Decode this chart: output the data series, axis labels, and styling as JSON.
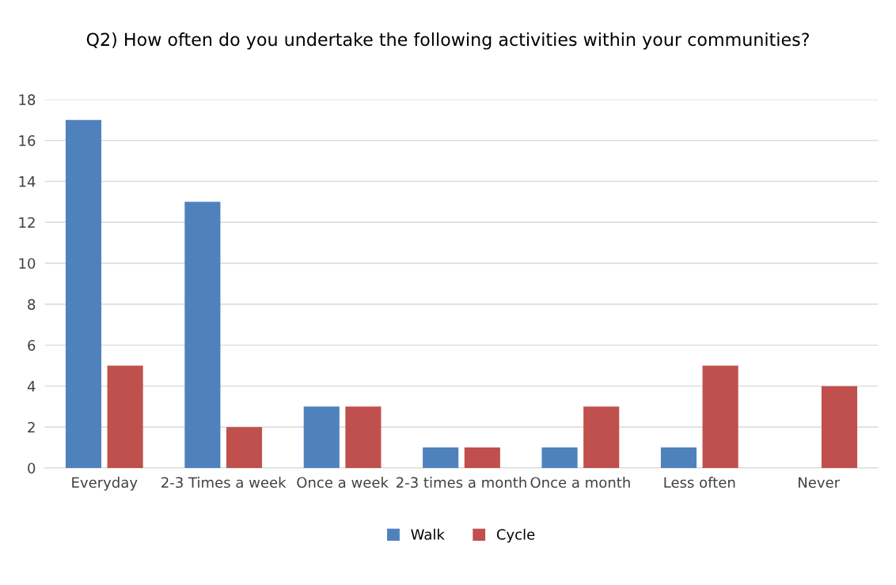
{
  "chart_data": {
    "type": "bar",
    "title": "Q2) How often do you undertake the following activities within your communities?",
    "categories": [
      "Everyday",
      "2-3 Times a week",
      "Once a week",
      "2-3 times a month",
      "Once a month",
      "Less often",
      "Never"
    ],
    "series": [
      {
        "name": "Walk",
        "color": "#4f81bd",
        "values": [
          17,
          13,
          3,
          1,
          1,
          1,
          0
        ]
      },
      {
        "name": "Cycle",
        "color": "#c0504d",
        "values": [
          5,
          2,
          3,
          1,
          3,
          5,
          4
        ]
      }
    ],
    "ylim": [
      0,
      18
    ],
    "yticks": [
      0,
      2,
      4,
      6,
      8,
      10,
      12,
      14,
      16,
      18
    ],
    "grid": "y",
    "legend": "bottom"
  }
}
